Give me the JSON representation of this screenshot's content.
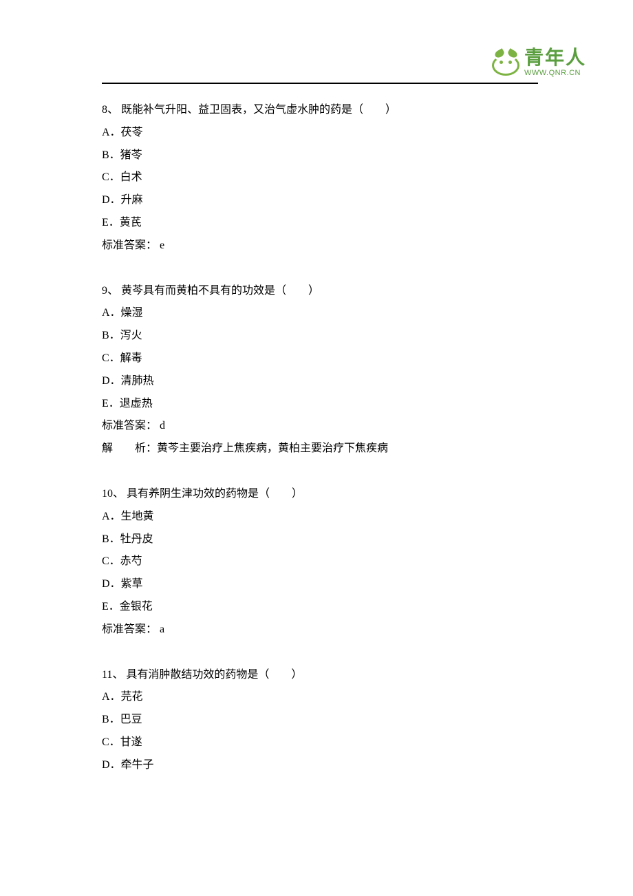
{
  "logo": {
    "chinese": "青年人",
    "url": "WWW.QNR.CN",
    "brand_color": "#5a9e3f",
    "icon_color": "#7cb342"
  },
  "questions": [
    {
      "number": "8、",
      "text": "既能补气升阳、益卫固表，又治气虚水肿的药是（　　）",
      "options": [
        "A．茯苓",
        "B．猪苓",
        "C．白术",
        "D．升麻",
        "E．黄芪"
      ],
      "answer_label": "标准答案：",
      "answer": "e",
      "analysis_label": "",
      "analysis": ""
    },
    {
      "number": "9、",
      "text": "黄芩具有而黄柏不具有的功效是（　　）",
      "options": [
        "A．燥湿",
        "B．泻火",
        "C．解毒",
        "D．清肺热",
        "E．退虚热"
      ],
      "answer_label": "标准答案：",
      "answer": "d",
      "analysis_label": "解　　析：",
      "analysis": "黄芩主要治疗上焦疾病，黄柏主要治疗下焦疾病"
    },
    {
      "number": "10、",
      "text": "具有养阴生津功效的药物是（　　）",
      "options": [
        "A．生地黄",
        "B．牡丹皮",
        "C．赤芍",
        "D．紫草",
        "E．金银花"
      ],
      "answer_label": "标准答案：",
      "answer": "a",
      "analysis_label": "",
      "analysis": ""
    },
    {
      "number": "11、",
      "text": "具有消肿散结功效的药物是（　　）",
      "options": [
        "A．芫花",
        "B．巴豆",
        "C．甘遂",
        "D．牵牛子"
      ],
      "answer_label": "",
      "answer": "",
      "analysis_label": "",
      "analysis": ""
    }
  ]
}
